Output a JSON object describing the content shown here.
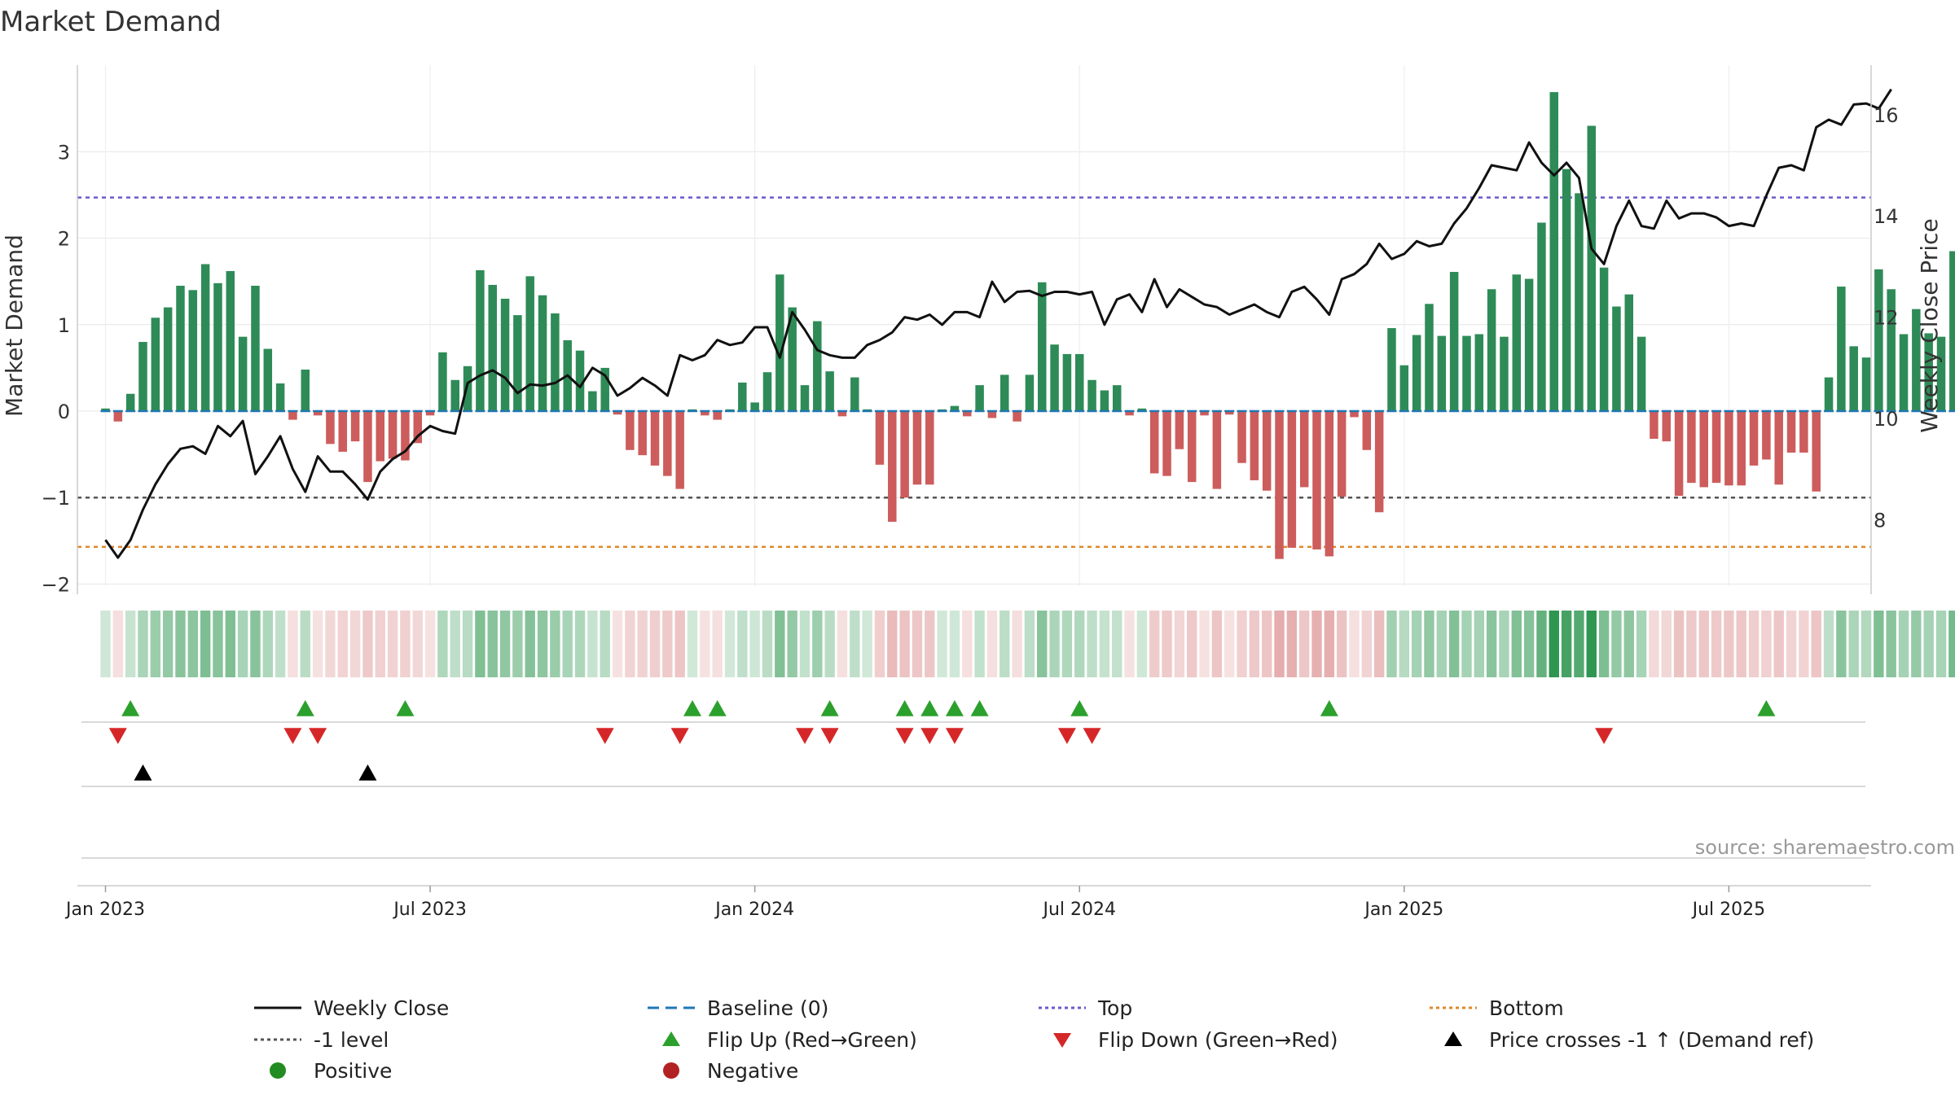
{
  "chart_data": {
    "type": "bar+line",
    "title": "Market Demand",
    "ylabel_left": "Market Demand",
    "ylabel_right": "Weekly Close Price",
    "ylim_left": [
      -2.2,
      3.9
    ],
    "yticks_left": [
      -2,
      -1,
      0,
      1,
      2,
      3
    ],
    "ytick_labels_left": [
      "−2",
      "−1",
      "0",
      "1",
      "2",
      "3"
    ],
    "ylim_right": [
      6.7,
      16.9
    ],
    "yticks_right": [
      8,
      10,
      12,
      14,
      16
    ],
    "xticks_week": [
      1,
      27,
      53,
      79,
      105,
      131
    ],
    "xtick_labels": [
      "Jan 2023",
      "Jul 2023",
      "Jan 2024",
      "Jul 2024",
      "Jan 2025",
      "Jul 2025"
    ],
    "reference_lines": {
      "top": 2.47,
      "bottom": -1.57,
      "minus_one": -1.0,
      "baseline": 0
    },
    "demand": [
      0.03,
      -0.12,
      0.2,
      0.8,
      1.08,
      1.2,
      1.45,
      1.4,
      1.7,
      1.48,
      1.62,
      0.86,
      1.45,
      0.72,
      0.32,
      -0.1,
      0.48,
      -0.05,
      -0.38,
      -0.47,
      -0.35,
      -0.82,
      -0.58,
      -0.55,
      -0.57,
      -0.37,
      -0.05,
      0.68,
      0.36,
      0.52,
      1.63,
      1.46,
      1.3,
      1.11,
      1.56,
      1.34,
      1.13,
      0.82,
      0.7,
      0.23,
      0.5,
      -0.04,
      -0.45,
      -0.51,
      -0.63,
      -0.75,
      -0.9,
      0.02,
      -0.05,
      -0.1,
      0.02,
      0.33,
      0.1,
      0.45,
      1.58,
      1.2,
      0.3,
      1.04,
      0.46,
      -0.06,
      0.39,
      0.02,
      -0.62,
      -1.28,
      -1.0,
      -0.85,
      -0.85,
      0.02,
      0.06,
      -0.06,
      0.3,
      -0.08,
      0.42,
      -0.12,
      0.42,
      1.49,
      0.77,
      0.66,
      0.66,
      0.36,
      0.24,
      0.3,
      -0.05,
      0.03,
      -0.72,
      -0.75,
      -0.44,
      -0.82,
      -0.05,
      -0.9,
      -0.04,
      -0.6,
      -0.8,
      -0.92,
      -1.71,
      -1.58,
      -0.88,
      -1.6,
      -1.68,
      -0.99,
      -0.07,
      -0.45,
      -1.17,
      0.96,
      0.53,
      0.88,
      1.24,
      0.87,
      1.61,
      0.87,
      0.89,
      1.41,
      0.86,
      1.58,
      1.53,
      2.18,
      3.69,
      2.8,
      2.52,
      3.3,
      1.66,
      1.21,
      1.35,
      0.86,
      -0.32,
      -0.35,
      -0.98,
      -0.83,
      -0.88,
      -0.83,
      -0.86,
      -0.86,
      -0.63,
      -0.56,
      -0.85,
      -0.48,
      -0.48,
      -0.93,
      0.39,
      1.44,
      0.75,
      0.62,
      1.64,
      1.41,
      0.89,
      1.18,
      0.9,
      0.86,
      1.85
    ],
    "series": [
      {
        "name": "Weekly Close",
        "values": [
          7.6,
          7.25,
          7.6,
          8.2,
          8.7,
          9.1,
          9.4,
          9.45,
          9.3,
          9.85,
          9.65,
          9.95,
          8.9,
          9.25,
          9.65,
          9.0,
          8.55,
          9.25,
          8.95,
          8.95,
          8.7,
          8.4,
          8.95,
          9.2,
          9.35,
          9.65,
          9.85,
          9.75,
          9.7,
          10.7,
          10.85,
          10.95,
          10.8,
          10.5,
          10.67,
          10.65,
          10.7,
          10.85,
          10.62,
          11.0,
          10.85,
          10.45,
          10.6,
          10.8,
          10.65,
          10.45,
          11.25,
          11.15,
          11.25,
          11.55,
          11.45,
          11.5,
          11.8,
          11.8,
          11.2,
          12.1,
          11.75,
          11.35,
          11.25,
          11.2,
          11.2,
          11.45,
          11.55,
          11.7,
          12.0,
          11.95,
          12.05,
          11.85,
          12.1,
          12.1,
          12.0,
          12.7,
          12.3,
          12.5,
          12.52,
          12.42,
          12.5,
          12.5,
          12.45,
          12.5,
          11.85,
          12.35,
          12.45,
          12.1,
          12.75,
          12.2,
          12.55,
          12.4,
          12.25,
          12.2,
          12.05,
          12.15,
          12.25,
          12.1,
          12.0,
          12.5,
          12.6,
          12.35,
          12.05,
          12.75,
          12.85,
          13.05,
          13.45,
          13.15,
          13.25,
          13.5,
          13.4,
          13.45,
          13.85,
          14.15,
          14.55,
          15.0,
          14.95,
          14.9,
          15.45,
          15.05,
          14.8,
          15.05,
          14.75,
          13.35,
          13.05,
          13.8,
          14.3,
          13.8,
          13.75,
          14.3,
          13.95,
          14.05,
          14.05,
          13.97,
          13.8,
          13.85,
          13.8,
          14.4,
          14.95,
          15.0,
          14.9,
          15.75,
          15.9,
          15.8,
          16.2,
          16.22,
          16.12,
          16.5
        ]
      }
    ],
    "heat_strip": "Market Demand intensity per week (green = positive, red = negative)",
    "flip_up_weeks": [
      3,
      17,
      25,
      48,
      50,
      59,
      65,
      67,
      69,
      71,
      79,
      99,
      134
    ],
    "flip_down_weeks": [
      2,
      16,
      18,
      41,
      47,
      57,
      59,
      65,
      67,
      69,
      78,
      80,
      121
    ],
    "price_cross_weeks": [
      4,
      22
    ],
    "legend": [
      {
        "label": "Weekly Close",
        "marker": "line-solid",
        "color": "#111111"
      },
      {
        "label": "Baseline (0)",
        "marker": "line-dashed",
        "color": "#1f77b4"
      },
      {
        "label": "Top",
        "marker": "line-dotted",
        "color": "#6a5acd"
      },
      {
        "label": "Bottom",
        "marker": "line-dotted",
        "color": "#e0882a"
      },
      {
        "label": "-1 level",
        "marker": "line-dotted",
        "color": "#555555"
      },
      {
        "label": "Flip Up (Red→Green)",
        "marker": "triangle-up",
        "color": "#2ca02c"
      },
      {
        "label": "Flip Down (Green→Red)",
        "marker": "triangle-down",
        "color": "#d62728"
      },
      {
        "label": "Price crosses -1 ↑ (Demand ref)",
        "marker": "triangle-up",
        "color": "#000000"
      },
      {
        "label": "Positive",
        "marker": "circle",
        "color": "#228b22"
      },
      {
        "label": "Negative",
        "marker": "circle",
        "color": "#b22222"
      }
    ],
    "source": "source: sharemaestro.com"
  },
  "colors": {
    "positive_bar": "#2e8b57",
    "negative_bar": "#cd5c5c",
    "price_line": "#111111",
    "axis_text": "#333333",
    "grid": "#e6e6e6"
  }
}
